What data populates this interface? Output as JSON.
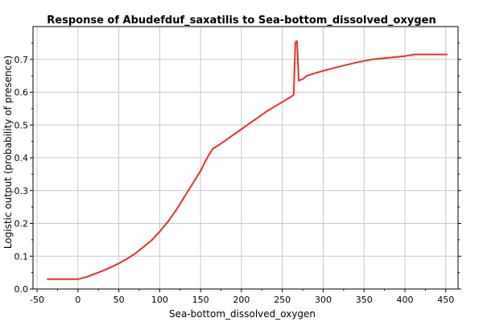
{
  "chart_data": {
    "type": "line",
    "title": "Response of Abudefduf_saxatilis to Sea-bottom_dissolved_oxygen",
    "xlabel": "Sea-bottom_dissolved_oxygen",
    "ylabel": "Logistic output (probability of presence)",
    "xlim": [
      -55,
      465
    ],
    "ylim": [
      0,
      0.8
    ],
    "xticks": [
      -50,
      0,
      50,
      100,
      150,
      200,
      250,
      300,
      350,
      400,
      450
    ],
    "xtick_labels": [
      "-50",
      "0",
      "50",
      "100",
      "150",
      "200",
      "250",
      "300",
      "350",
      "400",
      "450"
    ],
    "yticks": [
      0.0,
      0.1,
      0.2,
      0.3,
      0.4,
      0.5,
      0.6,
      0.7
    ],
    "ytick_labels": [
      "0.0",
      "0.1",
      "0.2",
      "0.3",
      "0.4",
      "0.5",
      "0.6",
      "0.7"
    ],
    "grid": true,
    "line_color": "#e8302a",
    "series": [
      {
        "x": [
          -38,
          0,
          10,
          20,
          30,
          40,
          50,
          60,
          70,
          80,
          90,
          100,
          110,
          120,
          130,
          140,
          150,
          155,
          160,
          165,
          170,
          180,
          190,
          200,
          210,
          220,
          230,
          240,
          250,
          260,
          264,
          265,
          266,
          267,
          268,
          269,
          270,
          275,
          280,
          290,
          300,
          320,
          340,
          350,
          360,
          380,
          400,
          412,
          452
        ],
        "y": [
          0.03,
          0.03,
          0.036,
          0.046,
          0.055,
          0.066,
          0.078,
          0.092,
          0.108,
          0.128,
          0.148,
          0.175,
          0.205,
          0.24,
          0.28,
          0.32,
          0.36,
          0.385,
          0.408,
          0.428,
          0.435,
          0.452,
          0.47,
          0.487,
          0.505,
          0.522,
          0.54,
          0.555,
          0.57,
          0.585,
          0.592,
          0.68,
          0.75,
          0.755,
          0.755,
          0.7,
          0.635,
          0.64,
          0.65,
          0.658,
          0.665,
          0.678,
          0.69,
          0.695,
          0.7,
          0.705,
          0.71,
          0.715,
          0.715
        ]
      }
    ]
  }
}
